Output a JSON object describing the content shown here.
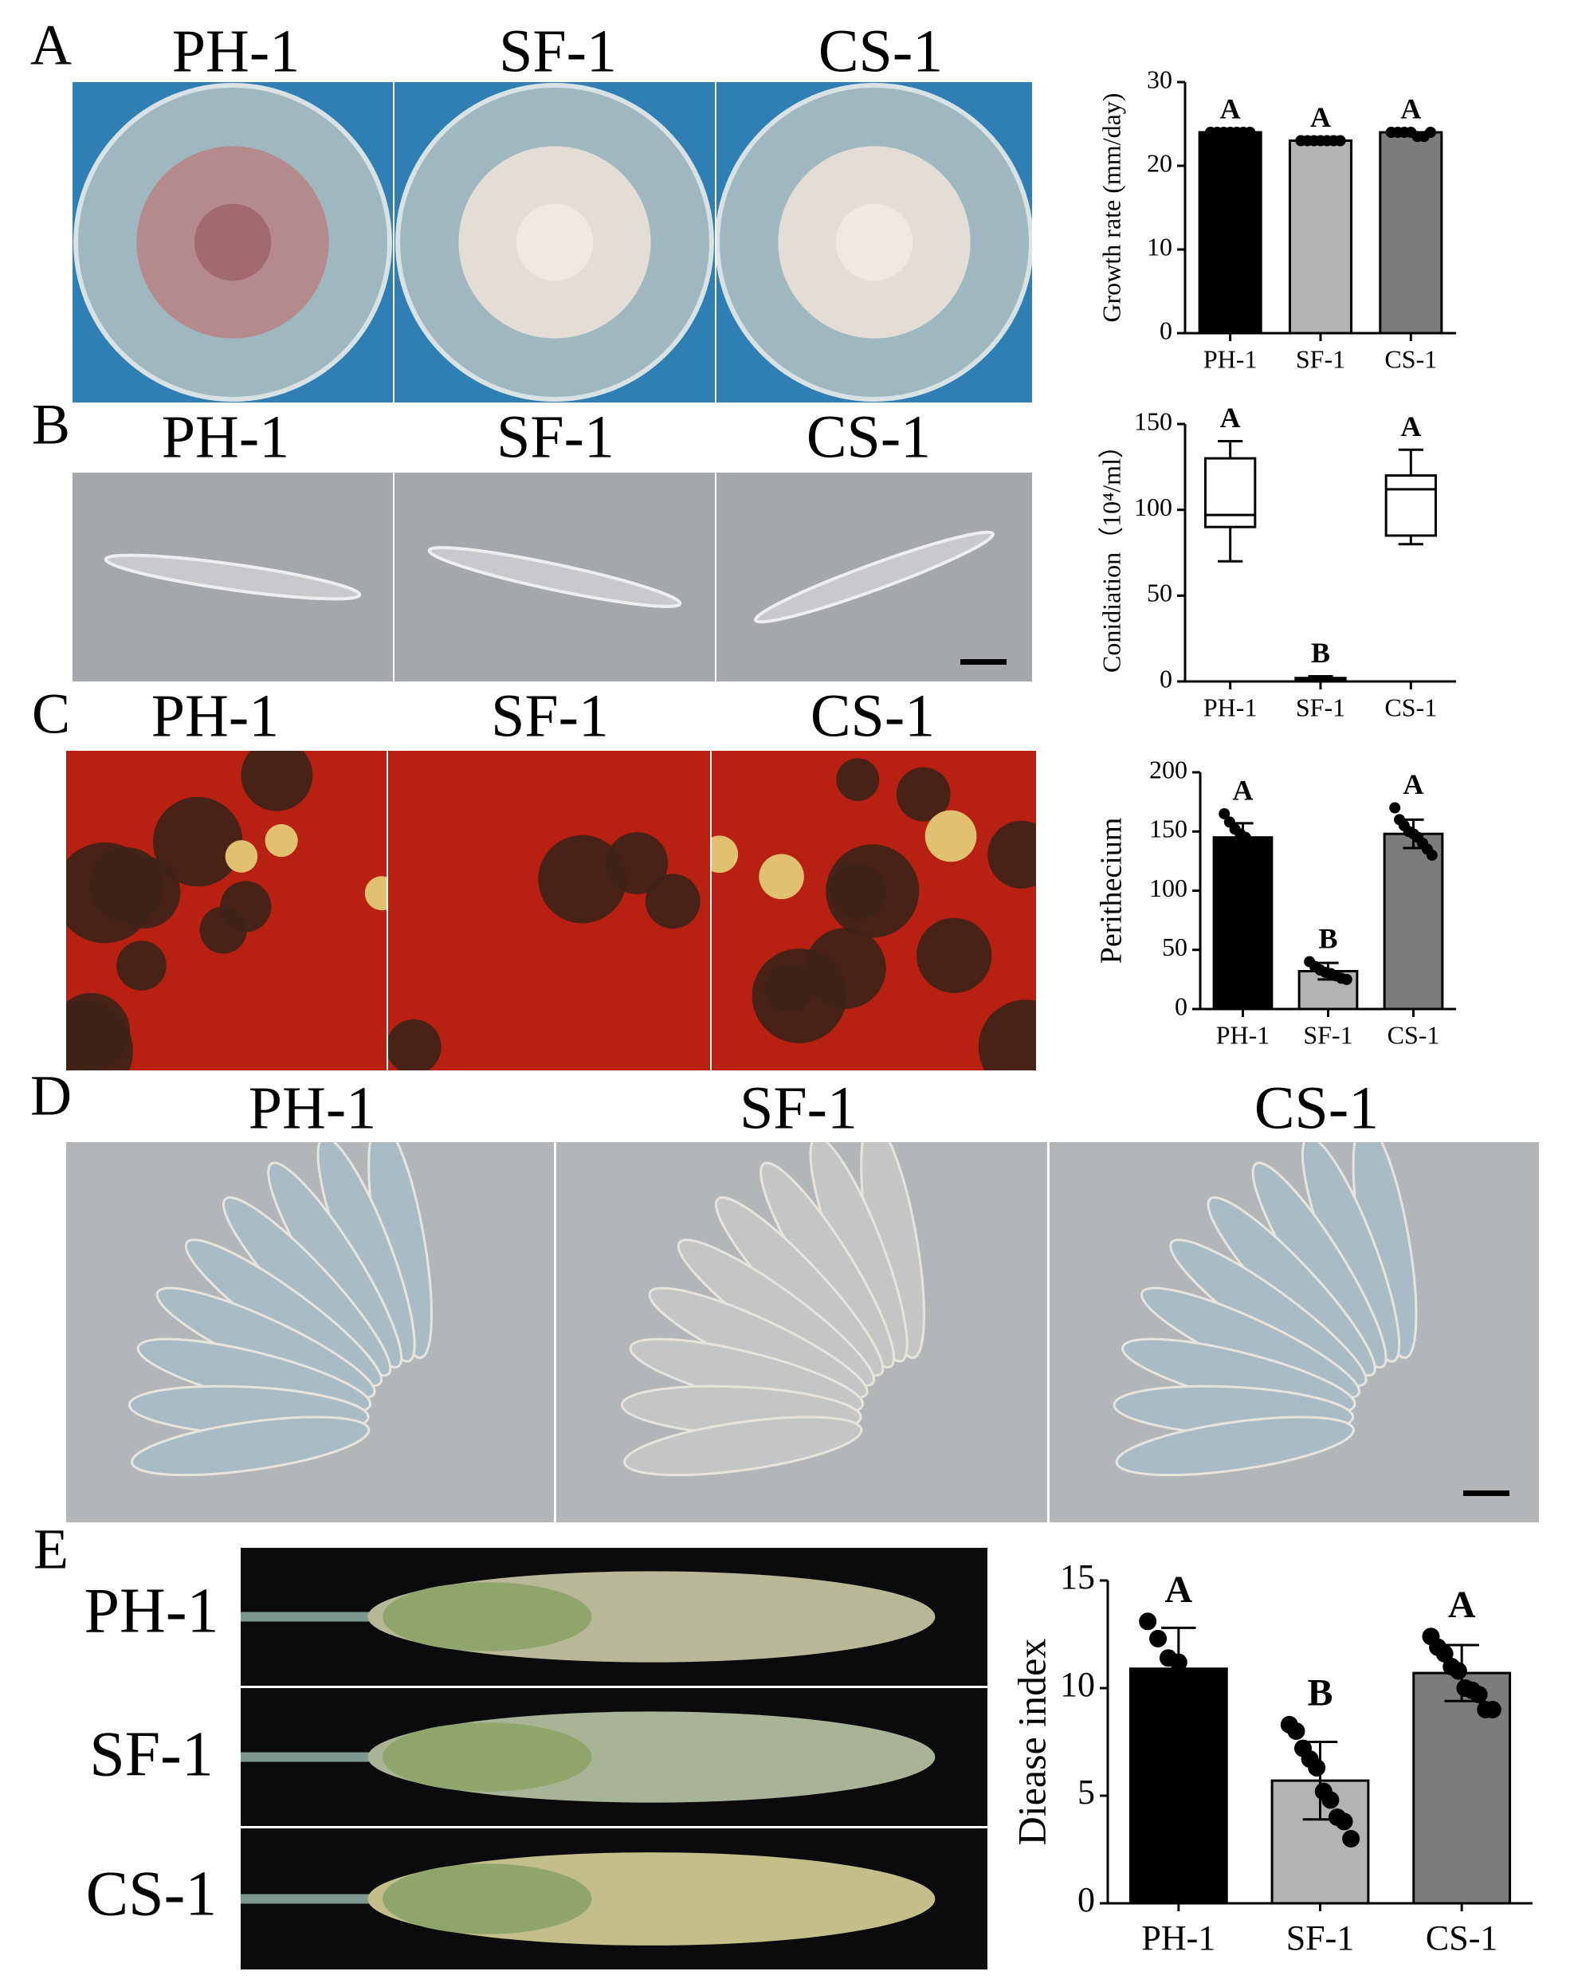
{
  "panels": [
    {
      "label": "A",
      "strains": [
        "PH-1",
        "SF-1",
        "CS-1"
      ]
    },
    {
      "label": "B",
      "strains": [
        "PH-1",
        "SF-1",
        "CS-1"
      ]
    },
    {
      "label": "C",
      "strains": [
        "PH-1",
        "SF-1",
        "CS-1"
      ]
    },
    {
      "label": "D",
      "strains": [
        "PH-1",
        "SF-1",
        "CS-1"
      ]
    },
    {
      "label": "E",
      "strains": [
        "PH-1",
        "SF-1",
        "CS-1"
      ]
    }
  ],
  "chart_data": [
    {
      "type": "bar",
      "y_label": "Growth rate (mm/day)",
      "categories": [
        "PH-1",
        "SF-1",
        "CS-1"
      ],
      "values": [
        24,
        23,
        24
      ],
      "colors": [
        "#000000",
        "#b3b3b6",
        "#7c7c7c"
      ],
      "annotations": [
        "A",
        "A",
        "A"
      ],
      "points": [
        [
          24,
          24,
          24,
          24,
          24,
          24,
          24
        ],
        [
          23,
          23,
          23,
          23,
          23,
          23,
          23
        ],
        [
          24,
          24,
          24,
          24,
          23.5,
          23.5,
          24
        ]
      ],
      "ylim": [
        0,
        30
      ],
      "yticks": [
        0,
        10,
        20,
        30
      ]
    },
    {
      "type": "box",
      "y_label": "Conidiation（10⁴/ml）",
      "categories": [
        "PH-1",
        "SF-1",
        "CS-1"
      ],
      "stats": [
        {
          "min": 70,
          "q1": 90,
          "median": 97,
          "q3": 130,
          "max": 140
        },
        {
          "min": 0,
          "q1": 0.5,
          "median": 1,
          "q3": 2,
          "max": 3
        },
        {
          "min": 80,
          "q1": 85,
          "median": 112,
          "q3": 120,
          "max": 135
        }
      ],
      "annotations": [
        "A",
        "B",
        "A"
      ],
      "ylim": [
        0,
        150
      ],
      "yticks": [
        0,
        50,
        100,
        150
      ]
    },
    {
      "type": "bar",
      "y_label": "Perithecium",
      "categories": [
        "PH-1",
        "SF-1",
        "CS-1"
      ],
      "values": [
        145,
        32,
        148
      ],
      "errors": [
        12,
        7,
        12
      ],
      "colors": [
        "#000000",
        "#b3b3b6",
        "#7c7c7c"
      ],
      "annotations": [
        "A",
        "B",
        "A"
      ],
      "points": [
        [
          165,
          158,
          152,
          148,
          145,
          140,
          135,
          132
        ],
        [
          40,
          36,
          33,
          31,
          30,
          28,
          26,
          25
        ],
        [
          170,
          160,
          155,
          150,
          148,
          145,
          140,
          135,
          130
        ]
      ],
      "ylim": [
        0,
        200
      ],
      "yticks": [
        0,
        50,
        100,
        150,
        200
      ]
    },
    {
      "type": "bar",
      "y_label": "Diease index",
      "categories": [
        "PH-1",
        "SF-1",
        "CS-1"
      ],
      "values": [
        10.9,
        5.7,
        10.7
      ],
      "errors": [
        1.9,
        1.8,
        1.3
      ],
      "colors": [
        "#000000",
        "#b3b3b6",
        "#7c7c7c"
      ],
      "annotations": [
        "A",
        "B",
        "A"
      ],
      "points": [
        [
          13.1,
          12.3,
          11.4,
          11.2,
          10.2,
          10.0,
          9.8
        ],
        [
          8.3,
          8.0,
          7.2,
          6.7,
          6.3,
          5.2,
          4.8,
          4.0,
          3.8,
          3.0
        ],
        [
          12.4,
          11.9,
          11.6,
          11.0,
          10.8,
          10.0,
          9.9,
          9.7,
          9.0,
          9.0
        ]
      ],
      "ylim": [
        0,
        15
      ],
      "yticks": [
        0,
        5,
        10,
        15
      ]
    }
  ]
}
